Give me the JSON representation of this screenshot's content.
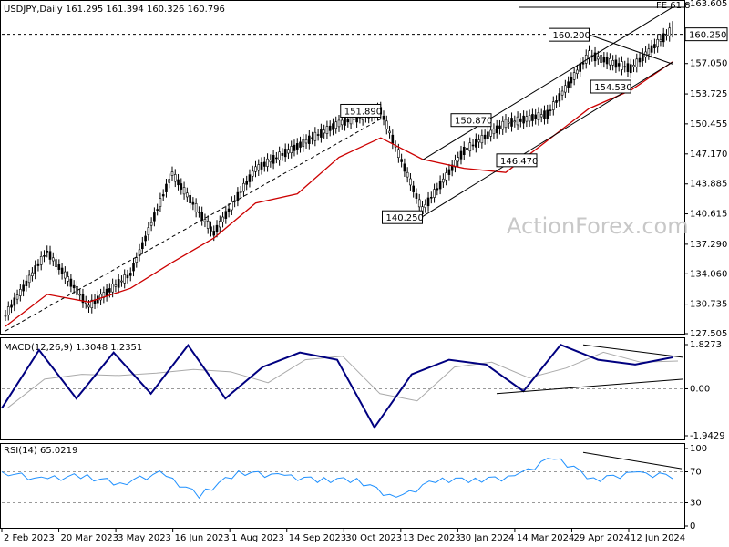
{
  "chart_data": [
    {
      "type": "candlestick",
      "header": "USDJPY,Daily  161.295 161.394 160.326 160.796",
      "y_ticks": [
        "163.605",
        "160.250",
        "157.050",
        "153.725",
        "150.455",
        "147.170",
        "143.885",
        "140.615",
        "137.290",
        "134.060",
        "130.735",
        "127.505"
      ],
      "y_range": [
        127.505,
        163.605
      ],
      "current_price_label": "160.250",
      "fib_label": "FE 61.8",
      "x_tick_labels": [
        "2 Feb 2023",
        "20 Mar 2023",
        "3 May 2023",
        "16 Jun 2023",
        "1 Aug 2023",
        "14 Sep 2023",
        "30 Oct 2023",
        "13 Dec 2023",
        "30 Jan 2024",
        "14 Mar 2024",
        "29 Apr 2024",
        "12 Jun 2024"
      ],
      "price_points": [
        {
          "label": "Feb 2023",
          "close": 129.5
        },
        {
          "label": "Mar 2023",
          "close": 136.5
        },
        {
          "label": "Mar 2023 low",
          "close": 130.5
        },
        {
          "label": "May 2023",
          "close": 134.0
        },
        {
          "label": "Jun 2023",
          "close": 145.0
        },
        {
          "label": "Jul 2023",
          "close": 138.5
        },
        {
          "label": "Aug 2023",
          "close": 145.5
        },
        {
          "label": "Sep 2023",
          "close": 148.0
        },
        {
          "label": "Oct 2023",
          "close": 150.5
        },
        {
          "label": "Nov 2023",
          "close": 151.89
        },
        {
          "label": "Dec 2023",
          "close": 141.0
        },
        {
          "label": "Jan 2024",
          "close": 147.5
        },
        {
          "label": "Feb 2024",
          "close": 150.5
        },
        {
          "label": "Mar 2024",
          "close": 151.5
        },
        {
          "label": "Apr 2024",
          "close": 158.0
        },
        {
          "label": "May 2024",
          "close": 156.5
        },
        {
          "label": "Jun 2024",
          "close": 160.8
        }
      ],
      "price_annotations": [
        {
          "text": "151.890",
          "price": 151.89
        },
        {
          "text": "140.250",
          "price": 140.25
        },
        {
          "text": "150.870",
          "price": 150.87
        },
        {
          "text": "146.470",
          "price": 146.47
        },
        {
          "text": "160.200",
          "price": 160.2
        },
        {
          "text": "154.530",
          "price": 154.53
        }
      ],
      "legend": "none",
      "grid": true
    },
    {
      "type": "line",
      "header": "MACD(12,26,9) 1.3048 1.2351",
      "y_ticks": [
        "1.8273",
        "0.00",
        "-1.9429"
      ],
      "y_range": [
        -1.9429,
        1.8273
      ],
      "macd_points": [
        -0.8,
        1.6,
        -0.4,
        1.5,
        -0.2,
        1.8,
        -0.4,
        0.9,
        1.5,
        1.2,
        -1.6,
        0.6,
        1.2,
        1.0,
        -0.1,
        1.82,
        1.2,
        1.0,
        1.3
      ]
    },
    {
      "type": "line",
      "header": "RSI(14) 65.0219",
      "y_ticks": [
        "100",
        "70",
        "30",
        "0"
      ],
      "y_range": [
        0,
        100
      ],
      "rsi_points": [
        70,
        60,
        65,
        55,
        68,
        40,
        70,
        65,
        60,
        60,
        35,
        60,
        60,
        63,
        90,
        60,
        68,
        65
      ]
    }
  ],
  "watermark": "ActionForex.com"
}
